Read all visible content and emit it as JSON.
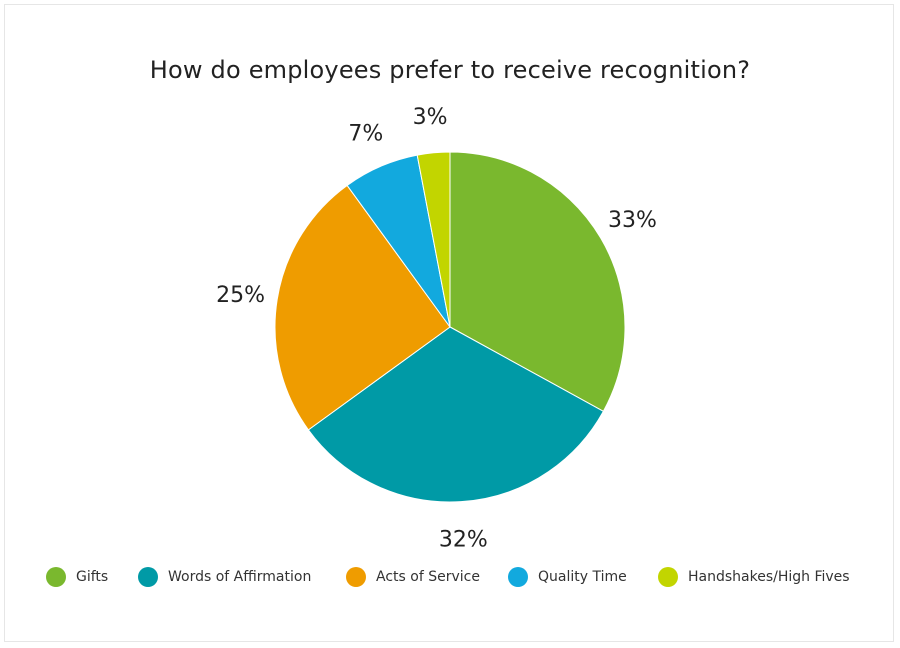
{
  "chart_data": {
    "type": "pie",
    "title": "How do employees prefer to receive recognition?",
    "slices": [
      {
        "name": "Gifts",
        "value": 33,
        "label": "33%",
        "color": "#7ab82e"
      },
      {
        "name": "Words of Affirmation",
        "value": 32,
        "label": "32%",
        "color": "#009aa6"
      },
      {
        "name": "Acts of Service",
        "value": 25,
        "label": "25%",
        "color": "#ef9c00"
      },
      {
        "name": "Quality Time",
        "value": 7,
        "label": "7%",
        "color": "#12a9de"
      },
      {
        "name": "Handshakes/High Fives",
        "value": 3,
        "label": "3%",
        "color": "#c2d500"
      }
    ],
    "legend_position": "bottom",
    "start_angle": "top",
    "direction": "clockwise"
  }
}
